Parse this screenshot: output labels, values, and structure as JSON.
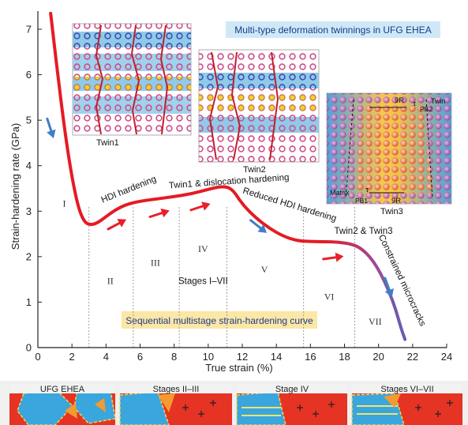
{
  "chart_data": {
    "type": "line",
    "xlabel": "True strain (%)",
    "ylabel": "Strain-hardening rate (GPa)",
    "xlim": [
      0,
      24
    ],
    "ylim": [
      0,
      7.4
    ],
    "xticks": [
      "0",
      "2",
      "4",
      "6",
      "8",
      "10",
      "12",
      "14",
      "16",
      "18",
      "20",
      "22",
      "24"
    ],
    "yticks": [
      "0",
      "1",
      "2",
      "3",
      "4",
      "5",
      "6",
      "7"
    ],
    "series": [
      {
        "x": [
          0.75,
          0.95,
          1.2,
          1.5,
          1.8,
          2.1,
          2.4,
          2.7,
          3.0,
          3.4,
          3.9,
          4.5,
          5.2,
          6.0,
          7.0,
          8.0,
          9.0,
          10.0,
          10.8,
          11.4,
          12.0,
          12.8,
          13.6,
          14.4,
          15.2,
          16.0,
          16.8,
          17.6,
          18.4,
          19.0,
          19.6,
          20.1,
          20.6,
          21.0,
          21.3,
          21.55
        ],
        "y": [
          7.35,
          6.7,
          5.9,
          5.0,
          4.2,
          3.55,
          3.05,
          2.78,
          2.7,
          2.72,
          2.85,
          3.02,
          3.15,
          3.22,
          3.27,
          3.32,
          3.38,
          3.48,
          3.55,
          3.5,
          3.15,
          2.85,
          2.62,
          2.45,
          2.35,
          2.33,
          2.33,
          2.32,
          2.28,
          2.18,
          1.95,
          1.65,
          1.25,
          0.85,
          0.45,
          0.18
        ]
      }
    ],
    "stage_lines_x": [
      3.0,
      5.6,
      8.3,
      11.1,
      15.6,
      18.6
    ],
    "stages": [
      {
        "label": "I",
        "x": 1.55,
        "y": 3.1
      },
      {
        "label": "II",
        "x": 4.25,
        "y": 1.4
      },
      {
        "label": "III",
        "x": 6.9,
        "y": 1.8
      },
      {
        "label": "IV",
        "x": 9.7,
        "y": 2.1
      },
      {
        "label": "Stages I–VII",
        "x": 9.7,
        "y": 1.4
      },
      {
        "label": "V",
        "x": 13.3,
        "y": 1.65
      },
      {
        "label": "VI",
        "x": 17.1,
        "y": 1.05
      },
      {
        "label": "VII",
        "x": 19.8,
        "y": 0.5
      }
    ],
    "curve_annotations": [
      {
        "text": "HDI hardening",
        "x": 3.8,
        "y": 3.18,
        "angle": -22
      },
      {
        "text": "Twin1 & dislocation hardening",
        "x": 7.7,
        "y": 3.5,
        "angle": -4
      },
      {
        "text": "Reduced HDI hardening",
        "x": 12.0,
        "y": 3.4,
        "angle": 17
      },
      {
        "text": "Twin2 & Twin3",
        "x": 17.4,
        "y": 2.5,
        "angle": 0
      },
      {
        "text": "Constrained microcracks",
        "x": 20.0,
        "y": 2.45,
        "angle": 65
      }
    ],
    "arrows": [
      {
        "color": "#e8202a",
        "x": 4.7,
        "y": 2.72,
        "angle": -28
      },
      {
        "color": "#e8202a",
        "x": 7.2,
        "y": 2.95,
        "angle": -18
      },
      {
        "color": "#e8202a",
        "x": 9.6,
        "y": 3.1,
        "angle": -18
      },
      {
        "color": "#e8202a",
        "x": 17.4,
        "y": 1.98,
        "angle": -8
      },
      {
        "color": "#3f7fc6",
        "x": 0.75,
        "y": 4.8,
        "angle": 72
      },
      {
        "color": "#3f7fc6",
        "x": 13.0,
        "y": 2.65,
        "angle": 38
      },
      {
        "color": "#3f7fc6",
        "x": 20.6,
        "y": 1.3,
        "angle": 70
      }
    ]
  },
  "figure": {
    "top_title": "Multi-type deformation twinnings in UFG EHEA",
    "bottom_title": "Sequential multistage strain-hardening curve",
    "insets": [
      {
        "caption": "Twin1"
      },
      {
        "caption": "Twin2"
      },
      {
        "caption": "Twin3",
        "labels": [
          "9R",
          "τ",
          "PB2",
          "Twin",
          "Matrix",
          "τ",
          "PB1",
          "9R"
        ]
      }
    ],
    "strip": [
      "UFG EHEA",
      "Stages II–III",
      "Stage IV",
      "Stages VI–VII"
    ]
  },
  "colors": {
    "curve_start": "#e41b23",
    "curve_end": "#2f73c8",
    "red_arrow": "#e8202a",
    "blue_arrow": "#3f7fc6",
    "title_box": "#cfe8f6",
    "bottom_box": "#fbe7a6",
    "strip_red": "#e53324",
    "strip_blue": "#3aa6de"
  }
}
